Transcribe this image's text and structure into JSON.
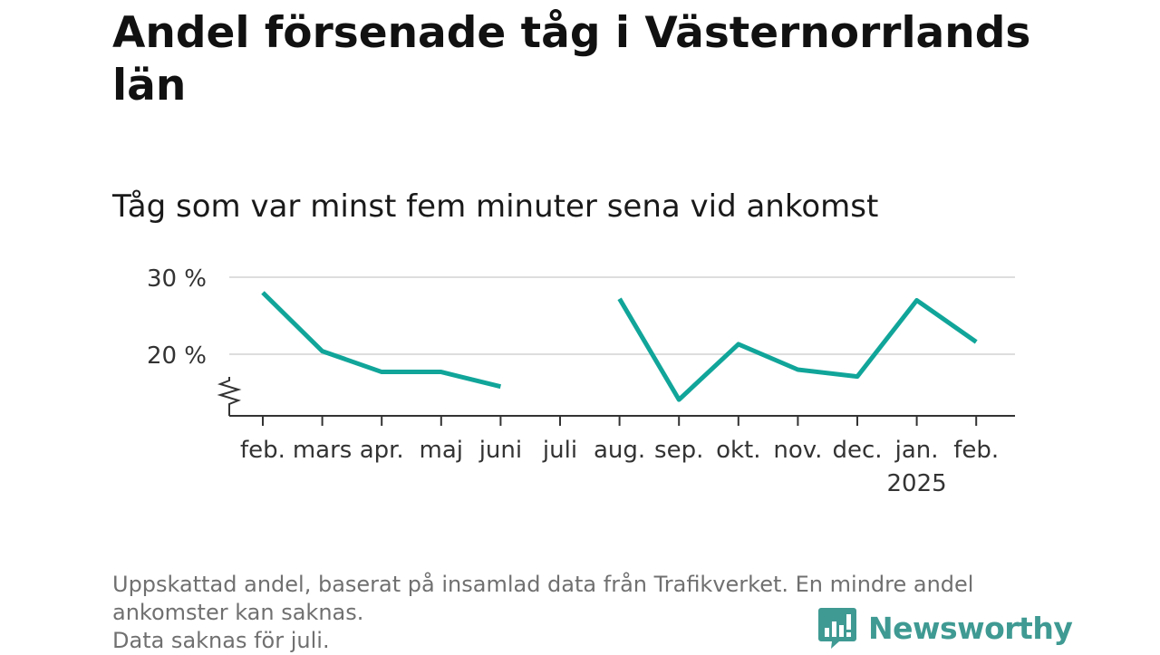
{
  "header": {
    "title": "Andel försenade tåg i Västernorrlands län",
    "subtitle": "Tåg som var minst fem minuter sena vid ankomst"
  },
  "chart_data": {
    "type": "line",
    "title": "Andel försenade tåg i Västernorrlands län",
    "subtitle": "Tåg som var minst fem minuter sena vid ankomst",
    "categories": [
      "feb.",
      "mars",
      "apr.",
      "maj",
      "juni",
      "juli",
      "aug.",
      "sep.",
      "okt.",
      "nov.",
      "dec.",
      "jan.",
      "feb."
    ],
    "category_sublabels": [
      "",
      "",
      "",
      "",
      "",
      "",
      "",
      "",
      "",
      "",
      "",
      "2025",
      ""
    ],
    "series": [
      {
        "values": [
          28.0,
          20.4,
          17.7,
          17.7,
          15.8,
          null,
          27.2,
          14.1,
          21.3,
          18.0,
          17.1,
          27.0,
          21.6
        ],
        "color": "#11a59a"
      }
    ],
    "yticks": [
      20,
      30
    ],
    "ytick_labels": [
      "20 %",
      "30 %"
    ],
    "ylim": [
      12,
      31
    ],
    "axis_break": true,
    "grid": true,
    "legend": "none",
    "colors": {
      "line": "#11a59a",
      "grid": "#dddddd",
      "axis": "#333333"
    }
  },
  "footer": {
    "notes": [
      "Uppskattad andel, baserat på insamlad data från Trafikverket. En mindre andel",
      "ankomster kan saknas.",
      "Data saknas för juli."
    ],
    "brand": "Newsworthy",
    "brand_icon": "bar-chart-speech-bubble-icon",
    "brand_color": "#3f9a93"
  }
}
